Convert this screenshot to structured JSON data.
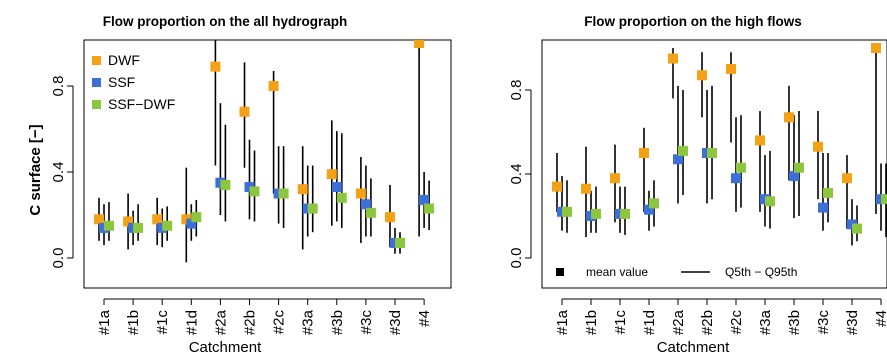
{
  "colors": {
    "DWF": "#F5A116",
    "SSF": "#3D6FDB",
    "SSF-DWF": "#8CC63E",
    "line": "#000000"
  },
  "legend": {
    "series": [
      "DWF",
      "SSF",
      "SSF−DWF"
    ],
    "mean_label": "mean value",
    "range_label": "Q5th − Q95th"
  },
  "chart_data": [
    {
      "type": "scatter",
      "title": "Flow proportion on the all hydrograph",
      "xlabel": "Catchment",
      "ylabel": "C surface [−]",
      "ylim": [
        -0.02,
        1.03
      ],
      "yticks": [
        "0.0",
        "0.4",
        "0.8"
      ],
      "categories": [
        "#1a",
        "#1b",
        "#1c",
        "#1d",
        "#2a",
        "#2b",
        "#2c",
        "#3a",
        "#3b",
        "#3c",
        "#3d",
        "#4"
      ],
      "legend_placement": "top-left",
      "series": [
        {
          "name": "DWF",
          "mean": [
            0.18,
            0.17,
            0.18,
            0.18,
            0.89,
            0.68,
            0.8,
            0.32,
            0.39,
            0.3,
            0.19,
            1.0
          ],
          "q5": [
            0.08,
            0.04,
            0.06,
            -0.02,
            0.43,
            0.42,
            0.3,
            0.04,
            0.15,
            0.07,
            0.05,
            0.1
          ],
          "q95": [
            0.28,
            0.3,
            0.28,
            0.42,
            1.03,
            0.91,
            0.87,
            0.52,
            0.64,
            0.47,
            0.34,
            1.0
          ]
        },
        {
          "name": "SSF",
          "mean": [
            0.14,
            0.14,
            0.14,
            0.16,
            0.35,
            0.33,
            0.3,
            0.23,
            0.33,
            0.25,
            0.07,
            0.27
          ],
          "q5": [
            0.06,
            0.06,
            0.05,
            0.08,
            0.2,
            0.18,
            0.16,
            0.1,
            0.17,
            0.1,
            0.02,
            0.14
          ],
          "q95": [
            0.25,
            0.22,
            0.23,
            0.25,
            0.72,
            0.55,
            0.52,
            0.43,
            0.59,
            0.43,
            0.14,
            0.4
          ]
        },
        {
          "name": "SSF−DWF",
          "mean": [
            0.15,
            0.14,
            0.15,
            0.19,
            0.34,
            0.31,
            0.3,
            0.23,
            0.28,
            0.21,
            0.07,
            0.23
          ],
          "q5": [
            0.08,
            0.08,
            0.08,
            0.1,
            0.17,
            0.17,
            0.14,
            0.12,
            0.14,
            0.1,
            0.02,
            0.13
          ],
          "q95": [
            0.26,
            0.25,
            0.24,
            0.27,
            0.62,
            0.5,
            0.52,
            0.43,
            0.58,
            0.37,
            0.12,
            0.36
          ]
        }
      ]
    },
    {
      "type": "scatter",
      "title": "Flow proportion on the high flows",
      "xlabel": "Catchment",
      "ylabel": "",
      "ylim": [
        -0.02,
        1.03
      ],
      "yticks": [
        "0.0",
        "0.4",
        "0.8"
      ],
      "categories": [
        "#1a",
        "#1b",
        "#1c",
        "#1d",
        "#2a",
        "#2b",
        "#2c",
        "#3a",
        "#3b",
        "#3c",
        "#3d",
        "#4"
      ],
      "legend_placement": "bottom",
      "series": [
        {
          "name": "DWF",
          "mean": [
            0.34,
            0.33,
            0.38,
            0.5,
            0.95,
            0.87,
            0.9,
            0.56,
            0.67,
            0.53,
            0.38,
            1.0
          ],
          "q5": [
            0.22,
            0.1,
            0.17,
            0.22,
            0.76,
            0.67,
            0.55,
            0.22,
            0.37,
            0.28,
            0.14,
            0.21
          ],
          "q95": [
            0.5,
            0.53,
            0.54,
            0.62,
            1.0,
            0.98,
            0.98,
            0.7,
            0.82,
            0.7,
            0.49,
            1.0
          ]
        },
        {
          "name": "SSF",
          "mean": [
            0.22,
            0.2,
            0.21,
            0.23,
            0.47,
            0.5,
            0.38,
            0.28,
            0.39,
            0.24,
            0.16,
            0.28
          ],
          "q5": [
            0.13,
            0.12,
            0.12,
            0.13,
            0.26,
            0.26,
            0.22,
            0.15,
            0.19,
            0.13,
            0.06,
            0.13
          ],
          "q95": [
            0.39,
            0.32,
            0.34,
            0.32,
            0.82,
            0.8,
            0.67,
            0.49,
            0.68,
            0.5,
            0.28,
            0.45
          ]
        },
        {
          "name": "SSF−DWF",
          "mean": [
            0.22,
            0.21,
            0.21,
            0.26,
            0.51,
            0.5,
            0.43,
            0.27,
            0.43,
            0.31,
            0.14,
            0.28
          ],
          "q5": [
            0.12,
            0.12,
            0.11,
            0.15,
            0.3,
            0.28,
            0.24,
            0.14,
            0.2,
            0.17,
            0.08,
            0.1
          ],
          "q95": [
            0.37,
            0.34,
            0.34,
            0.37,
            0.8,
            0.82,
            0.68,
            0.51,
            0.7,
            0.5,
            0.25,
            0.45
          ]
        }
      ]
    }
  ]
}
